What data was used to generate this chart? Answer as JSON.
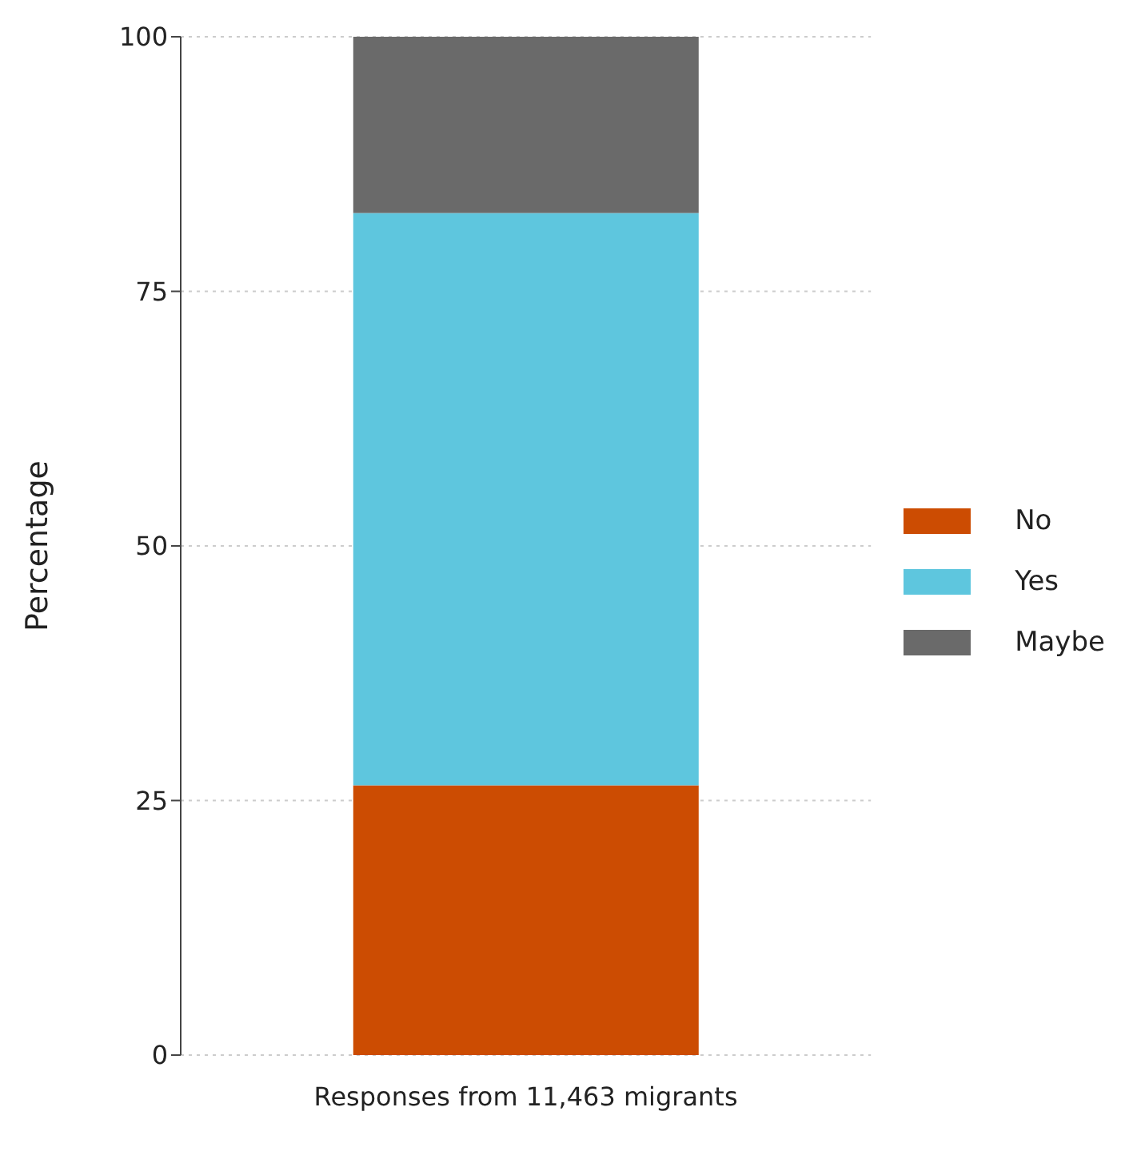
{
  "chart_data": {
    "type": "bar",
    "stacked": true,
    "ylabel": "Percentage",
    "categories": [
      "Responses from 11,463 migrants"
    ],
    "series": [
      {
        "name": "No",
        "color": "#cc4c02",
        "values": [
          26.5
        ]
      },
      {
        "name": "Yes",
        "color": "#5ec6de",
        "values": [
          56.2
        ]
      },
      {
        "name": "Maybe",
        "color": "#6a6a6a",
        "values": [
          17.3
        ]
      }
    ],
    "ylim": [
      0,
      100
    ],
    "yticks": [
      0,
      25,
      50,
      75,
      100
    ],
    "grid": "y",
    "legend": "right"
  }
}
